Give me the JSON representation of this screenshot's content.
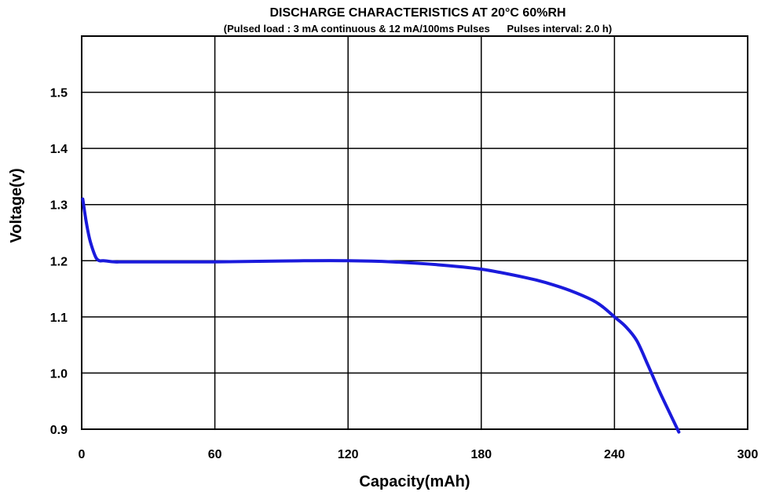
{
  "chart_data": {
    "type": "line",
    "title": "DISCHARGE CHARACTERISTICS AT 20°C    60%RH",
    "subtitle": "(Pulsed load : 3 mA continuous & 12 mA/100ms Pulses      Pulses interval: 2.0 h)",
    "xlabel": "Capacity(mAh)",
    "ylabel": "Voltage(v)",
    "xlim": [
      0,
      300
    ],
    "ylim": [
      0.9,
      1.6
    ],
    "x_ticks": [
      0,
      60,
      120,
      180,
      240,
      300
    ],
    "x_tick_labels": [
      "0",
      "60",
      "120",
      "180",
      "240",
      "300"
    ],
    "y_ticks": [
      0.9,
      1.0,
      1.1,
      1.2,
      1.3,
      1.4,
      1.5
    ],
    "y_tick_labels": [
      "0.9",
      "1.0",
      "1.1",
      "1.2",
      "1.3",
      "1.4",
      "1.5"
    ],
    "grid": true,
    "series": [
      {
        "color": "#1a1adc",
        "x": [
          0.5,
          2,
          3.5,
          5,
          6.5,
          8,
          10,
          15,
          20,
          40,
          60,
          80,
          100,
          120,
          140,
          160,
          180,
          200,
          210,
          220,
          230,
          235,
          240,
          245,
          250,
          255,
          260,
          265,
          269
        ],
        "y": [
          1.31,
          1.27,
          1.24,
          1.22,
          1.205,
          1.2,
          1.2,
          1.198,
          1.198,
          1.198,
          1.198,
          1.199,
          1.2,
          1.2,
          1.198,
          1.193,
          1.185,
          1.17,
          1.16,
          1.147,
          1.13,
          1.117,
          1.1,
          1.083,
          1.058,
          1.015,
          0.97,
          0.928,
          0.895
        ]
      }
    ]
  }
}
